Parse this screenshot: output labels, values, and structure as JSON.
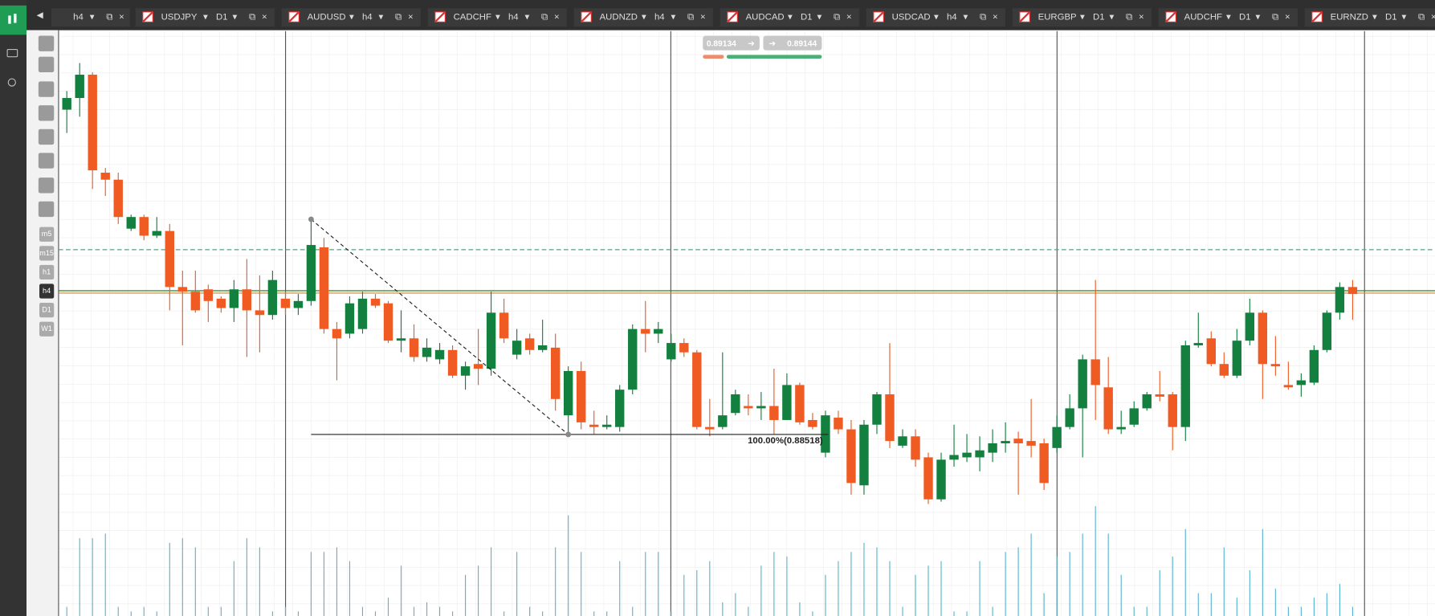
{
  "tabs": [
    {
      "timeframe": "h4"
    },
    {
      "symbol": "USDJPY",
      "timeframe": "D1"
    },
    {
      "symbol": "AUDUSD",
      "timeframe": "h4"
    },
    {
      "symbol": "CADCHF",
      "timeframe": "h4"
    },
    {
      "symbol": "AUDNZD",
      "timeframe": "h4"
    },
    {
      "symbol": "AUDCAD",
      "timeframe": "D1"
    },
    {
      "symbol": "USDCAD",
      "timeframe": "h4"
    },
    {
      "symbol": "EURGBP",
      "timeframe": "D1"
    },
    {
      "symbol": "AUDCHF",
      "timeframe": "D1"
    },
    {
      "symbol": "EURNZD",
      "timeframe": "D1"
    }
  ],
  "timeframes": [
    "m5",
    "m15",
    "h1",
    "h4",
    "D1",
    "W1"
  ],
  "active_timeframe": "h4",
  "quote": {
    "sell": "0.89134",
    "buy": "0.89144"
  },
  "chart": {
    "type": "candlestick",
    "ylim": [
      0.8774,
      0.9038
    ],
    "up_color": "#13803f",
    "down_color": "#ef5b22",
    "volume_color": "#5ab4cf",
    "price_lines": [
      {
        "value": 0.8931,
        "color": "#5a9e8c",
        "dashed": true
      },
      {
        "value": 0.89134,
        "color": "#2e7d32",
        "dashed": false
      },
      {
        "value": 0.89124,
        "color": "#c98a3a",
        "dashed": false
      }
    ],
    "fib": {
      "label": "100.00%(0.88518)",
      "value": 0.88518,
      "start": 0.8944
    },
    "candles": [
      [
        0.8991,
        0.8999,
        0.8981,
        0.8996
      ],
      [
        0.8996,
        0.9011,
        0.8988,
        0.9006
      ],
      [
        0.9006,
        0.9007,
        0.8957,
        0.8965
      ],
      [
        0.8964,
        0.8966,
        0.8954,
        0.8961
      ],
      [
        0.8961,
        0.8964,
        0.8942,
        0.8945
      ],
      [
        0.894,
        0.8946,
        0.8939,
        0.8945
      ],
      [
        0.8945,
        0.8946,
        0.8935,
        0.8937
      ],
      [
        0.8937,
        0.8945,
        0.8936,
        0.8939
      ],
      [
        0.8939,
        0.8942,
        0.8905,
        0.8915
      ],
      [
        0.8915,
        0.8922,
        0.889,
        0.8913
      ],
      [
        0.8913,
        0.8922,
        0.8904,
        0.8905
      ],
      [
        0.8914,
        0.8916,
        0.89,
        0.8909
      ],
      [
        0.891,
        0.8911,
        0.8904,
        0.8906
      ],
      [
        0.8906,
        0.8918,
        0.89,
        0.8914
      ],
      [
        0.8914,
        0.8927,
        0.8885,
        0.8905
      ],
      [
        0.8905,
        0.892,
        0.8887,
        0.8903
      ],
      [
        0.8903,
        0.8922,
        0.8901,
        0.8918
      ],
      [
        0.891,
        0.8913,
        0.8903,
        0.8906
      ],
      [
        0.8906,
        0.8912,
        0.8903,
        0.8909
      ],
      [
        0.8909,
        0.8944,
        0.8907,
        0.8933
      ],
      [
        0.8932,
        0.8936,
        0.8895,
        0.8897
      ],
      [
        0.8897,
        0.89,
        0.8875,
        0.8893
      ],
      [
        0.8895,
        0.8911,
        0.8893,
        0.8908
      ],
      [
        0.8897,
        0.8913,
        0.8895,
        0.891
      ],
      [
        0.891,
        0.8912,
        0.8906,
        0.8907
      ],
      [
        0.8908,
        0.8909,
        0.8891,
        0.8892
      ],
      [
        0.8892,
        0.8905,
        0.8887,
        0.8893
      ],
      [
        0.8893,
        0.8899,
        0.8883,
        0.8885
      ],
      [
        0.8885,
        0.8893,
        0.8883,
        0.8889
      ],
      [
        0.8884,
        0.8891,
        0.8882,
        0.8888
      ],
      [
        0.8888,
        0.889,
        0.8876,
        0.8877
      ],
      [
        0.8877,
        0.8883,
        0.8871,
        0.8881
      ],
      [
        0.8882,
        0.8897,
        0.8873,
        0.888
      ],
      [
        0.888,
        0.8913,
        0.8877,
        0.8904
      ],
      [
        0.8904,
        0.891,
        0.8891,
        0.8893
      ],
      [
        0.8886,
        0.8897,
        0.8884,
        0.8892
      ],
      [
        0.8893,
        0.8895,
        0.8886,
        0.8888
      ],
      [
        0.8888,
        0.8901,
        0.8887,
        0.889
      ],
      [
        0.8889,
        0.8895,
        0.8862,
        0.8867
      ],
      [
        0.886,
        0.8881,
        0.8852,
        0.8879
      ],
      [
        0.8879,
        0.8883,
        0.8854,
        0.8857
      ],
      [
        0.8856,
        0.8862,
        0.8852,
        0.8855
      ],
      [
        0.8855,
        0.886,
        0.8854,
        0.8856
      ],
      [
        0.8855,
        0.8873,
        0.8853,
        0.8871
      ],
      [
        0.8871,
        0.8899,
        0.8869,
        0.8897
      ],
      [
        0.8897,
        0.8909,
        0.8887,
        0.8895
      ],
      [
        0.8895,
        0.89,
        0.8891,
        0.8897
      ],
      [
        0.8884,
        0.8895,
        0.8883,
        0.8891
      ],
      [
        0.8891,
        0.8893,
        0.8885,
        0.8887
      ],
      [
        0.8887,
        0.8888,
        0.8854,
        0.8855
      ],
      [
        0.8855,
        0.8867,
        0.8851,
        0.8854
      ],
      [
        0.8855,
        0.8887,
        0.8854,
        0.886
      ],
      [
        0.8861,
        0.8871,
        0.886,
        0.8869
      ],
      [
        0.8864,
        0.8869,
        0.886,
        0.8863
      ],
      [
        0.8863,
        0.887,
        0.8858,
        0.8864
      ],
      [
        0.8864,
        0.888,
        0.8852,
        0.8858
      ],
      [
        0.8858,
        0.8878,
        0.8858,
        0.8873
      ],
      [
        0.8873,
        0.8874,
        0.8856,
        0.8857
      ],
      [
        0.8858,
        0.8861,
        0.8854,
        0.8855
      ],
      [
        0.8844,
        0.8862,
        0.8842,
        0.886
      ],
      [
        0.8859,
        0.8862,
        0.8852,
        0.8854
      ],
      [
        0.8854,
        0.8858,
        0.8826,
        0.8831
      ],
      [
        0.883,
        0.8858,
        0.8826,
        0.8856
      ],
      [
        0.8856,
        0.887,
        0.8852,
        0.8869
      ],
      [
        0.8869,
        0.8891,
        0.8846,
        0.8849
      ],
      [
        0.8847,
        0.8854,
        0.8846,
        0.8851
      ],
      [
        0.8851,
        0.8854,
        0.8838,
        0.8841
      ],
      [
        0.8842,
        0.8844,
        0.8822,
        0.8824
      ],
      [
        0.8824,
        0.8844,
        0.8823,
        0.8841
      ],
      [
        0.8841,
        0.8856,
        0.8838,
        0.8843
      ],
      [
        0.8842,
        0.8852,
        0.884,
        0.8844
      ],
      [
        0.8842,
        0.8851,
        0.8836,
        0.8845
      ],
      [
        0.8844,
        0.8854,
        0.884,
        0.8848
      ],
      [
        0.8848,
        0.8857,
        0.8844,
        0.8849
      ],
      [
        0.885,
        0.8853,
        0.8826,
        0.8848
      ],
      [
        0.8849,
        0.8867,
        0.8842,
        0.8847
      ],
      [
        0.8848,
        0.885,
        0.8828,
        0.8831
      ],
      [
        0.8846,
        0.886,
        0.8844,
        0.8855
      ],
      [
        0.8855,
        0.8869,
        0.8854,
        0.8863
      ],
      [
        0.8863,
        0.8886,
        0.8842,
        0.8884
      ],
      [
        0.8884,
        0.8918,
        0.8858,
        0.8873
      ],
      [
        0.8872,
        0.8885,
        0.8852,
        0.8854
      ],
      [
        0.8854,
        0.8862,
        0.8852,
        0.8855
      ],
      [
        0.8856,
        0.8866,
        0.8855,
        0.8863
      ],
      [
        0.8863,
        0.887,
        0.8862,
        0.8869
      ],
      [
        0.8869,
        0.8879,
        0.8866,
        0.8868
      ],
      [
        0.8869,
        0.887,
        0.8845,
        0.8855
      ],
      [
        0.8855,
        0.8892,
        0.8849,
        0.889
      ],
      [
        0.889,
        0.8904,
        0.8889,
        0.8891
      ],
      [
        0.8893,
        0.8896,
        0.8881,
        0.8882
      ],
      [
        0.8882,
        0.8887,
        0.8876,
        0.8877
      ],
      [
        0.8877,
        0.8897,
        0.8876,
        0.8892
      ],
      [
        0.8892,
        0.891,
        0.889,
        0.8904
      ],
      [
        0.8904,
        0.8905,
        0.8867,
        0.8882
      ],
      [
        0.8882,
        0.8894,
        0.8877,
        0.8881
      ],
      [
        0.8873,
        0.8883,
        0.8871,
        0.8872
      ],
      [
        0.8873,
        0.8878,
        0.8868,
        0.8875
      ],
      [
        0.8874,
        0.889,
        0.8873,
        0.8888
      ],
      [
        0.8888,
        0.8905,
        0.8887,
        0.8904
      ],
      [
        0.8904,
        0.8917,
        0.8901,
        0.8915
      ],
      [
        0.8915,
        0.8918,
        0.8901,
        0.8912
      ]
    ],
    "volumes": [
      10,
      85,
      85,
      90,
      10,
      5,
      10,
      5,
      80,
      85,
      75,
      10,
      10,
      60,
      85,
      75,
      5,
      10,
      5,
      70,
      70,
      75,
      60,
      10,
      5,
      20,
      55,
      10,
      15,
      10,
      5,
      45,
      55,
      75,
      5,
      70,
      10,
      5,
      75,
      110,
      70,
      5,
      5,
      60,
      10,
      70,
      70,
      5,
      45,
      50,
      60,
      15,
      25,
      10,
      55,
      70,
      65,
      15,
      5,
      45,
      60,
      70,
      80,
      75,
      60,
      10,
      45,
      55,
      60,
      5,
      5,
      60,
      10,
      70,
      75,
      90,
      25,
      65,
      70,
      90,
      120,
      90,
      45,
      10,
      10,
      50,
      65,
      95,
      25,
      25,
      75,
      20,
      50,
      95,
      30,
      10,
      10,
      20,
      25,
      35,
      10
    ]
  }
}
